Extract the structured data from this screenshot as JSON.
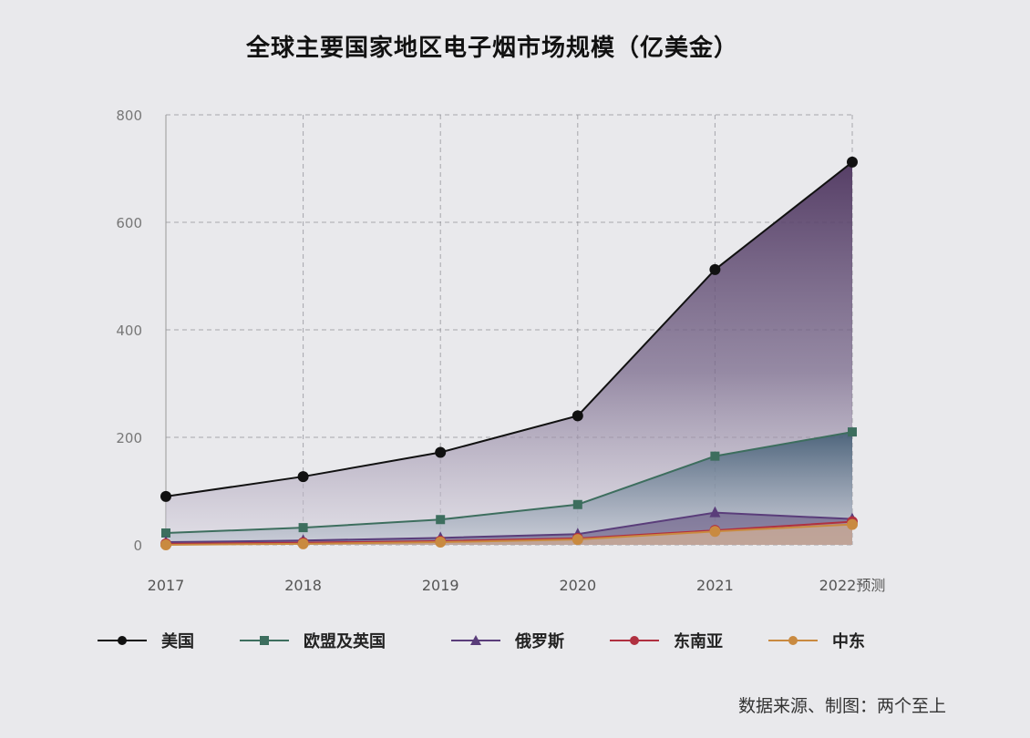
{
  "chart_data": {
    "type": "area",
    "title": "全球主要国家地区电子烟市场规模（亿美金）",
    "categories": [
      "2017",
      "2018",
      "2019",
      "2020",
      "2021",
      "2022预测"
    ],
    "ylim": [
      0,
      800
    ],
    "yticks": [
      "0",
      "200",
      "400",
      "600",
      "800"
    ],
    "grid": true,
    "legend_position": "bottom",
    "series": [
      {
        "name": "美国",
        "values": [
          90,
          127,
          172,
          240,
          512,
          712
        ],
        "color": "#111111",
        "marker": "circle",
        "fill": "#5a3f6e"
      },
      {
        "name": "欧盟及英国",
        "values": [
          22,
          32,
          47,
          75,
          165,
          210
        ],
        "color": "#3d6e5e",
        "marker": "square",
        "fill": "#3a5868"
      },
      {
        "name": "俄罗斯",
        "values": [
          5,
          8,
          13,
          20,
          60,
          48
        ],
        "color": "#5a3d7a",
        "marker": "triangle",
        "fill": "#5c4a7a"
      },
      {
        "name": "东南亚",
        "values": [
          2,
          4,
          7,
          12,
          27,
          43
        ],
        "color": "#b03040",
        "marker": "circle",
        "fill": "#c8a0a0"
      },
      {
        "name": "中东",
        "values": [
          0,
          2,
          5,
          10,
          25,
          38
        ],
        "color": "#c98a40",
        "marker": "circle",
        "fill": "#d8b890"
      }
    ]
  },
  "source": "数据来源、制图：两个至上"
}
